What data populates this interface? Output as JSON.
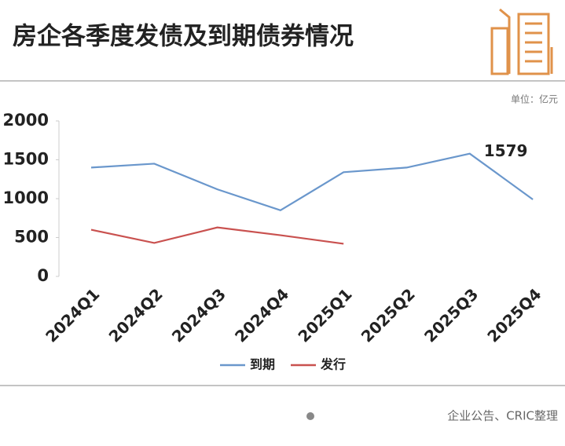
{
  "chart_data": {
    "type": "line",
    "title": "房企各季度发债及到期债券情况",
    "unit": "单位：亿元",
    "source": "企业公告、CRIC整理",
    "categories": [
      "2024Q1",
      "2024Q2",
      "2024Q3",
      "2024Q4",
      "2025Q1",
      "2025Q2",
      "2025Q3",
      "2025Q4"
    ],
    "series": [
      {
        "name": "到期",
        "color": "#6a97cc",
        "values": [
          1400,
          1450,
          1120,
          850,
          1340,
          1400,
          1579,
          990
        ]
      },
      {
        "name": "发行",
        "color": "#c9514f",
        "values": [
          600,
          430,
          630,
          530,
          420,
          null,
          null,
          null
        ]
      }
    ],
    "ylim": [
      0,
      2000
    ],
    "yticks": [
      0,
      500,
      1000,
      1500,
      2000
    ],
    "grid": false,
    "legend": "bottom"
  }
}
